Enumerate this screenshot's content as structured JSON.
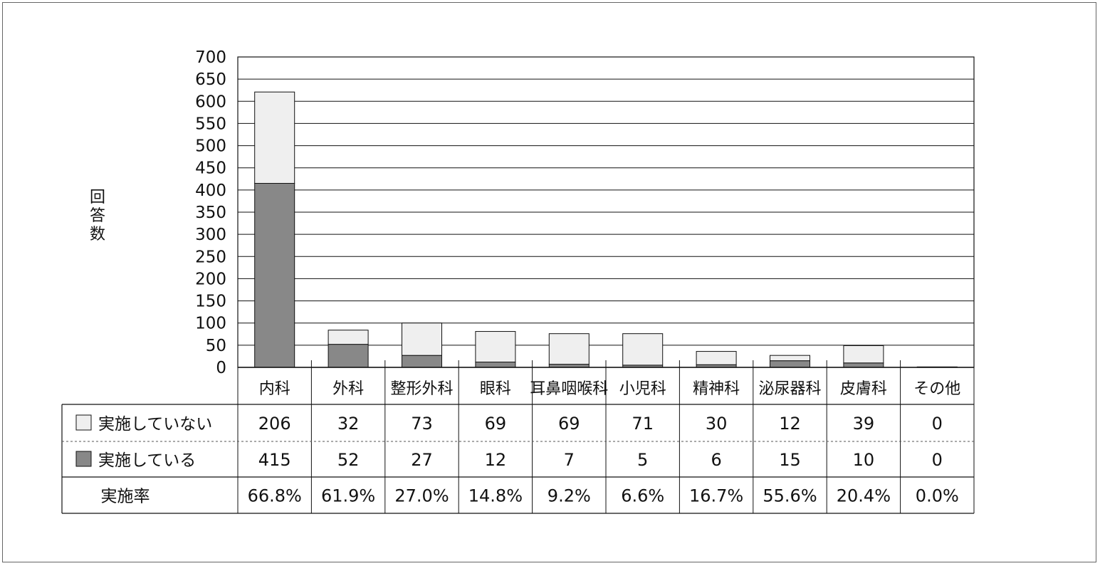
{
  "chart_data": {
    "type": "bar",
    "stacked": true,
    "ylabel": "回答数",
    "ylim": [
      0,
      700
    ],
    "ytick_step": 50,
    "grid": true,
    "categories": [
      "内科",
      "外科",
      "整形外科",
      "眼科",
      "耳鼻咽喉科",
      "小児科",
      "精神科",
      "泌尿器科",
      "皮膚科",
      "その他"
    ],
    "series": [
      {
        "name": "実施している",
        "color": "#888888",
        "values": [
          415,
          52,
          27,
          12,
          7,
          5,
          6,
          15,
          10,
          0
        ]
      },
      {
        "name": "実施していない",
        "color": "#efefef",
        "values": [
          206,
          32,
          73,
          69,
          69,
          71,
          30,
          12,
          39,
          0
        ]
      }
    ],
    "table": {
      "row_order": [
        "実施していない",
        "実施している"
      ],
      "rate_label": "実施率",
      "rates": [
        "66.8%",
        "61.9%",
        "27.0%",
        "14.8%",
        "9.2%",
        "6.6%",
        "16.7%",
        "55.6%",
        "20.4%",
        "0.0%"
      ]
    }
  }
}
